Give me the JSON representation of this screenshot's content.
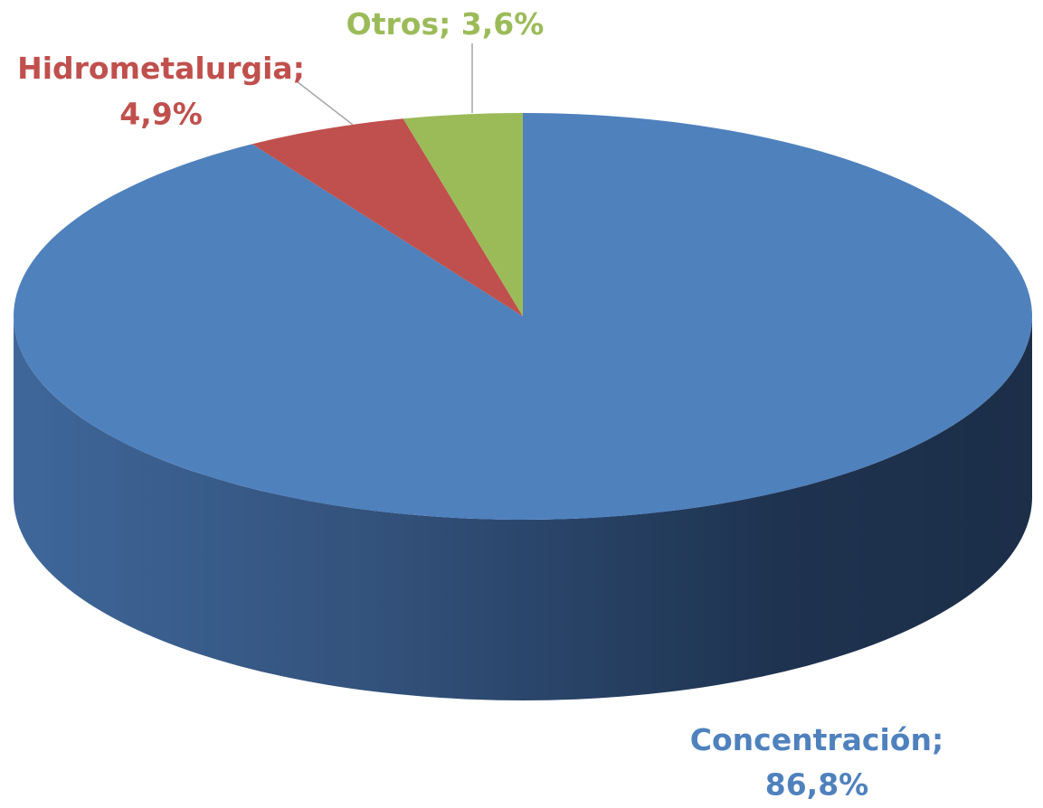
{
  "chart_data": {
    "type": "pie",
    "categories": [
      "Concentración",
      "Hidrometalurgia",
      "Otros"
    ],
    "values": [
      86.8,
      4.9,
      3.6
    ],
    "value_labels": [
      "86,8%",
      "4,9%",
      "3,6%"
    ],
    "label_separator": ";",
    "colors": [
      "#4f81bd",
      "#c0504d",
      "#9bbb59"
    ]
  }
}
